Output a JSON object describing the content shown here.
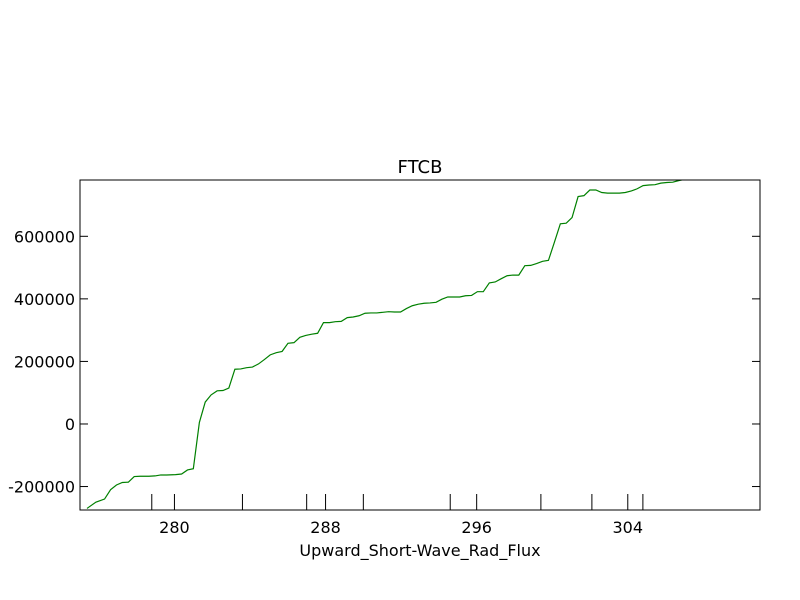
{
  "chart_data": {
    "type": "line",
    "title": "FTCB",
    "xlabel": "Upward_Short-Wave_Rad_Flux",
    "ylabel": "",
    "xlim": [
      275.0,
      311.0
    ],
    "ylim": [
      -275000,
      780000
    ],
    "grid": false,
    "x_ticks": [
      280,
      288,
      296,
      304
    ],
    "y_ticks": [
      -200000,
      0,
      200000,
      400000,
      600000
    ],
    "minor_marks": [
      278.8,
      283.6,
      287.0,
      290.0,
      294.6,
      299.4,
      302.1,
      304.8
    ],
    "series": [
      {
        "name": "",
        "color": "#008000",
        "points": [
          [
            275.37,
            -270000
          ],
          [
            275.84,
            -250000
          ],
          [
            276.3,
            -240000
          ],
          [
            276.62,
            -210000
          ],
          [
            276.93,
            -195000
          ],
          [
            277.24,
            -187000
          ],
          [
            277.56,
            -186000
          ],
          [
            277.87,
            -168000
          ],
          [
            278.18,
            -167000
          ],
          [
            278.65,
            -167000
          ],
          [
            278.97,
            -166000
          ],
          [
            279.28,
            -163000
          ],
          [
            279.59,
            -163000
          ],
          [
            280.06,
            -162000
          ],
          [
            280.38,
            -160000
          ],
          [
            280.69,
            -147000
          ],
          [
            281.0,
            -143000
          ],
          [
            281.32,
            5000
          ],
          [
            281.63,
            70000
          ],
          [
            281.94,
            93000
          ],
          [
            282.26,
            106000
          ],
          [
            282.57,
            107000
          ],
          [
            282.88,
            115000
          ],
          [
            283.2,
            175000
          ],
          [
            283.51,
            176000
          ],
          [
            283.82,
            180000
          ],
          [
            284.13,
            182000
          ],
          [
            284.45,
            192000
          ],
          [
            284.76,
            206000
          ],
          [
            285.07,
            221000
          ],
          [
            285.39,
            228000
          ],
          [
            285.7,
            232000
          ],
          [
            286.01,
            258000
          ],
          [
            286.33,
            260000
          ],
          [
            286.64,
            277000
          ],
          [
            286.95,
            283000
          ],
          [
            287.27,
            287000
          ],
          [
            287.58,
            290000
          ],
          [
            287.89,
            324000
          ],
          [
            288.21,
            324000
          ],
          [
            288.52,
            327000
          ],
          [
            288.83,
            328000
          ],
          [
            289.15,
            340000
          ],
          [
            289.46,
            342000
          ],
          [
            289.77,
            346000
          ],
          [
            290.09,
            354000
          ],
          [
            290.4,
            355000
          ],
          [
            290.71,
            355000
          ],
          [
            291.03,
            357000
          ],
          [
            291.34,
            359000
          ],
          [
            291.65,
            358000
          ],
          [
            291.97,
            358000
          ],
          [
            292.28,
            369000
          ],
          [
            292.59,
            378000
          ],
          [
            292.91,
            383000
          ],
          [
            293.22,
            386000
          ],
          [
            293.53,
            387000
          ],
          [
            293.85,
            389000
          ],
          [
            294.16,
            399000
          ],
          [
            294.47,
            406000
          ],
          [
            294.79,
            406000
          ],
          [
            295.1,
            406000
          ],
          [
            295.41,
            410000
          ],
          [
            295.73,
            411000
          ],
          [
            296.04,
            423000
          ],
          [
            296.35,
            423000
          ],
          [
            296.67,
            451000
          ],
          [
            296.98,
            454000
          ],
          [
            297.29,
            464000
          ],
          [
            297.61,
            474000
          ],
          [
            297.92,
            476000
          ],
          [
            298.23,
            476000
          ],
          [
            298.55,
            506000
          ],
          [
            298.86,
            507000
          ],
          [
            299.17,
            513000
          ],
          [
            299.49,
            520000
          ],
          [
            299.8,
            523000
          ],
          [
            300.11,
            580000
          ],
          [
            300.43,
            640000
          ],
          [
            300.74,
            642000
          ],
          [
            301.05,
            660000
          ],
          [
            301.37,
            727000
          ],
          [
            301.68,
            730000
          ],
          [
            301.99,
            748000
          ],
          [
            302.31,
            748000
          ],
          [
            302.62,
            740000
          ],
          [
            302.93,
            738000
          ],
          [
            303.25,
            738000
          ],
          [
            303.56,
            738000
          ],
          [
            303.87,
            740000
          ],
          [
            304.19,
            745000
          ],
          [
            304.5,
            752000
          ],
          [
            304.81,
            762000
          ],
          [
            305.13,
            764000
          ],
          [
            305.44,
            765000
          ],
          [
            305.75,
            770000
          ],
          [
            306.07,
            772000
          ],
          [
            306.38,
            773000
          ],
          [
            306.69,
            778000
          ],
          [
            307.01,
            782000
          ]
        ]
      }
    ]
  }
}
